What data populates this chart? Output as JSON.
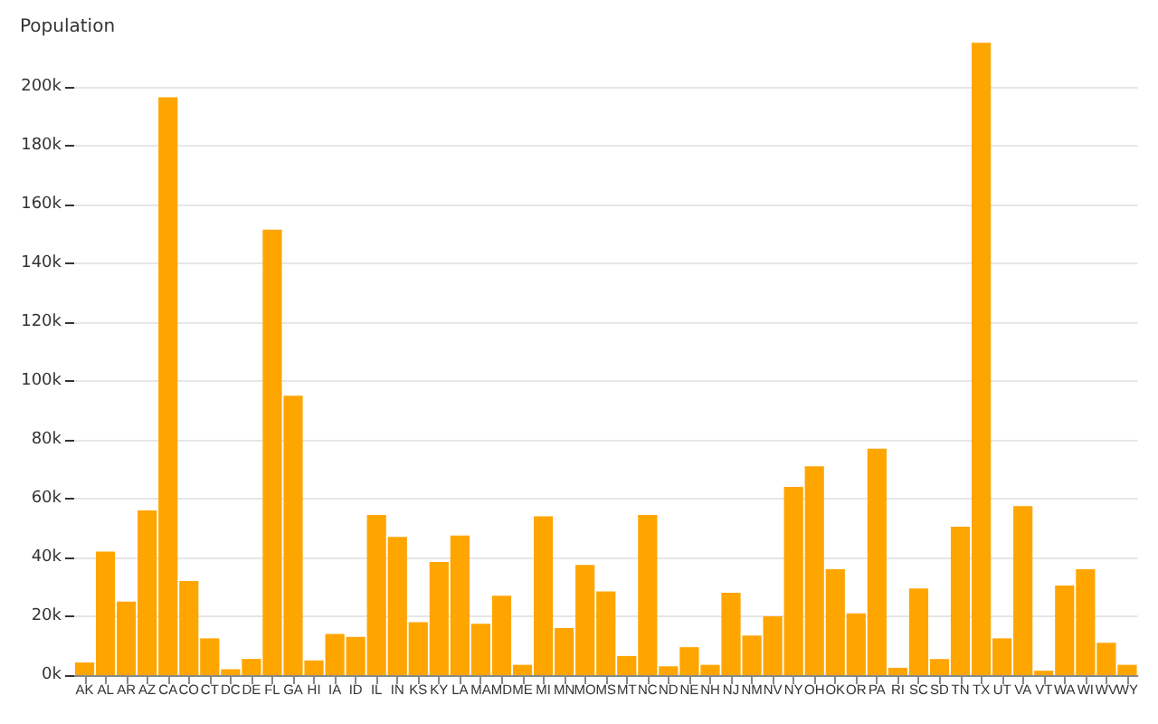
{
  "chart_data": {
    "type": "bar",
    "ylabel": "Population",
    "categories": [
      "AK",
      "AL",
      "AR",
      "AZ",
      "CA",
      "CO",
      "CT",
      "DC",
      "DE",
      "FL",
      "GA",
      "HI",
      "IA",
      "ID",
      "IL",
      "IN",
      "KS",
      "KY",
      "LA",
      "MA",
      "MD",
      "ME",
      "MI",
      "MN",
      "MO",
      "MS",
      "MT",
      "NC",
      "ND",
      "NE",
      "NH",
      "NJ",
      "NM",
      "NV",
      "NY",
      "OH",
      "OK",
      "OR",
      "PA",
      "RI",
      "SC",
      "SD",
      "TN",
      "TX",
      "UT",
      "VA",
      "VT",
      "WA",
      "WI",
      "WV",
      "WY"
    ],
    "values": [
      4300,
      42000,
      25000,
      56000,
      196500,
      32000,
      12500,
      2000,
      5500,
      151500,
      95000,
      5000,
      14000,
      13000,
      54500,
      47000,
      18000,
      38500,
      47500,
      17500,
      27000,
      3500,
      54000,
      16000,
      37500,
      28500,
      6500,
      54500,
      3000,
      9500,
      3500,
      28000,
      13500,
      20000,
      64000,
      71000,
      36000,
      21000,
      77000,
      2500,
      29500,
      5500,
      50500,
      215000,
      12500,
      57500,
      1500,
      30500,
      36000,
      11000,
      3500
    ],
    "color": "#ffa500",
    "ylim": [
      0,
      216000
    ],
    "yticks": [
      {
        "value": 0,
        "label": "0k"
      },
      {
        "value": 20000,
        "label": "20k"
      },
      {
        "value": 40000,
        "label": "40k"
      },
      {
        "value": 60000,
        "label": "60k"
      },
      {
        "value": 80000,
        "label": "80k"
      },
      {
        "value": 100000,
        "label": "100k"
      },
      {
        "value": 120000,
        "label": "120k"
      },
      {
        "value": 140000,
        "label": "140k"
      },
      {
        "value": 160000,
        "label": "160k"
      },
      {
        "value": 180000,
        "label": "180k"
      },
      {
        "value": 200000,
        "label": "200k"
      }
    ],
    "grid": "y"
  }
}
